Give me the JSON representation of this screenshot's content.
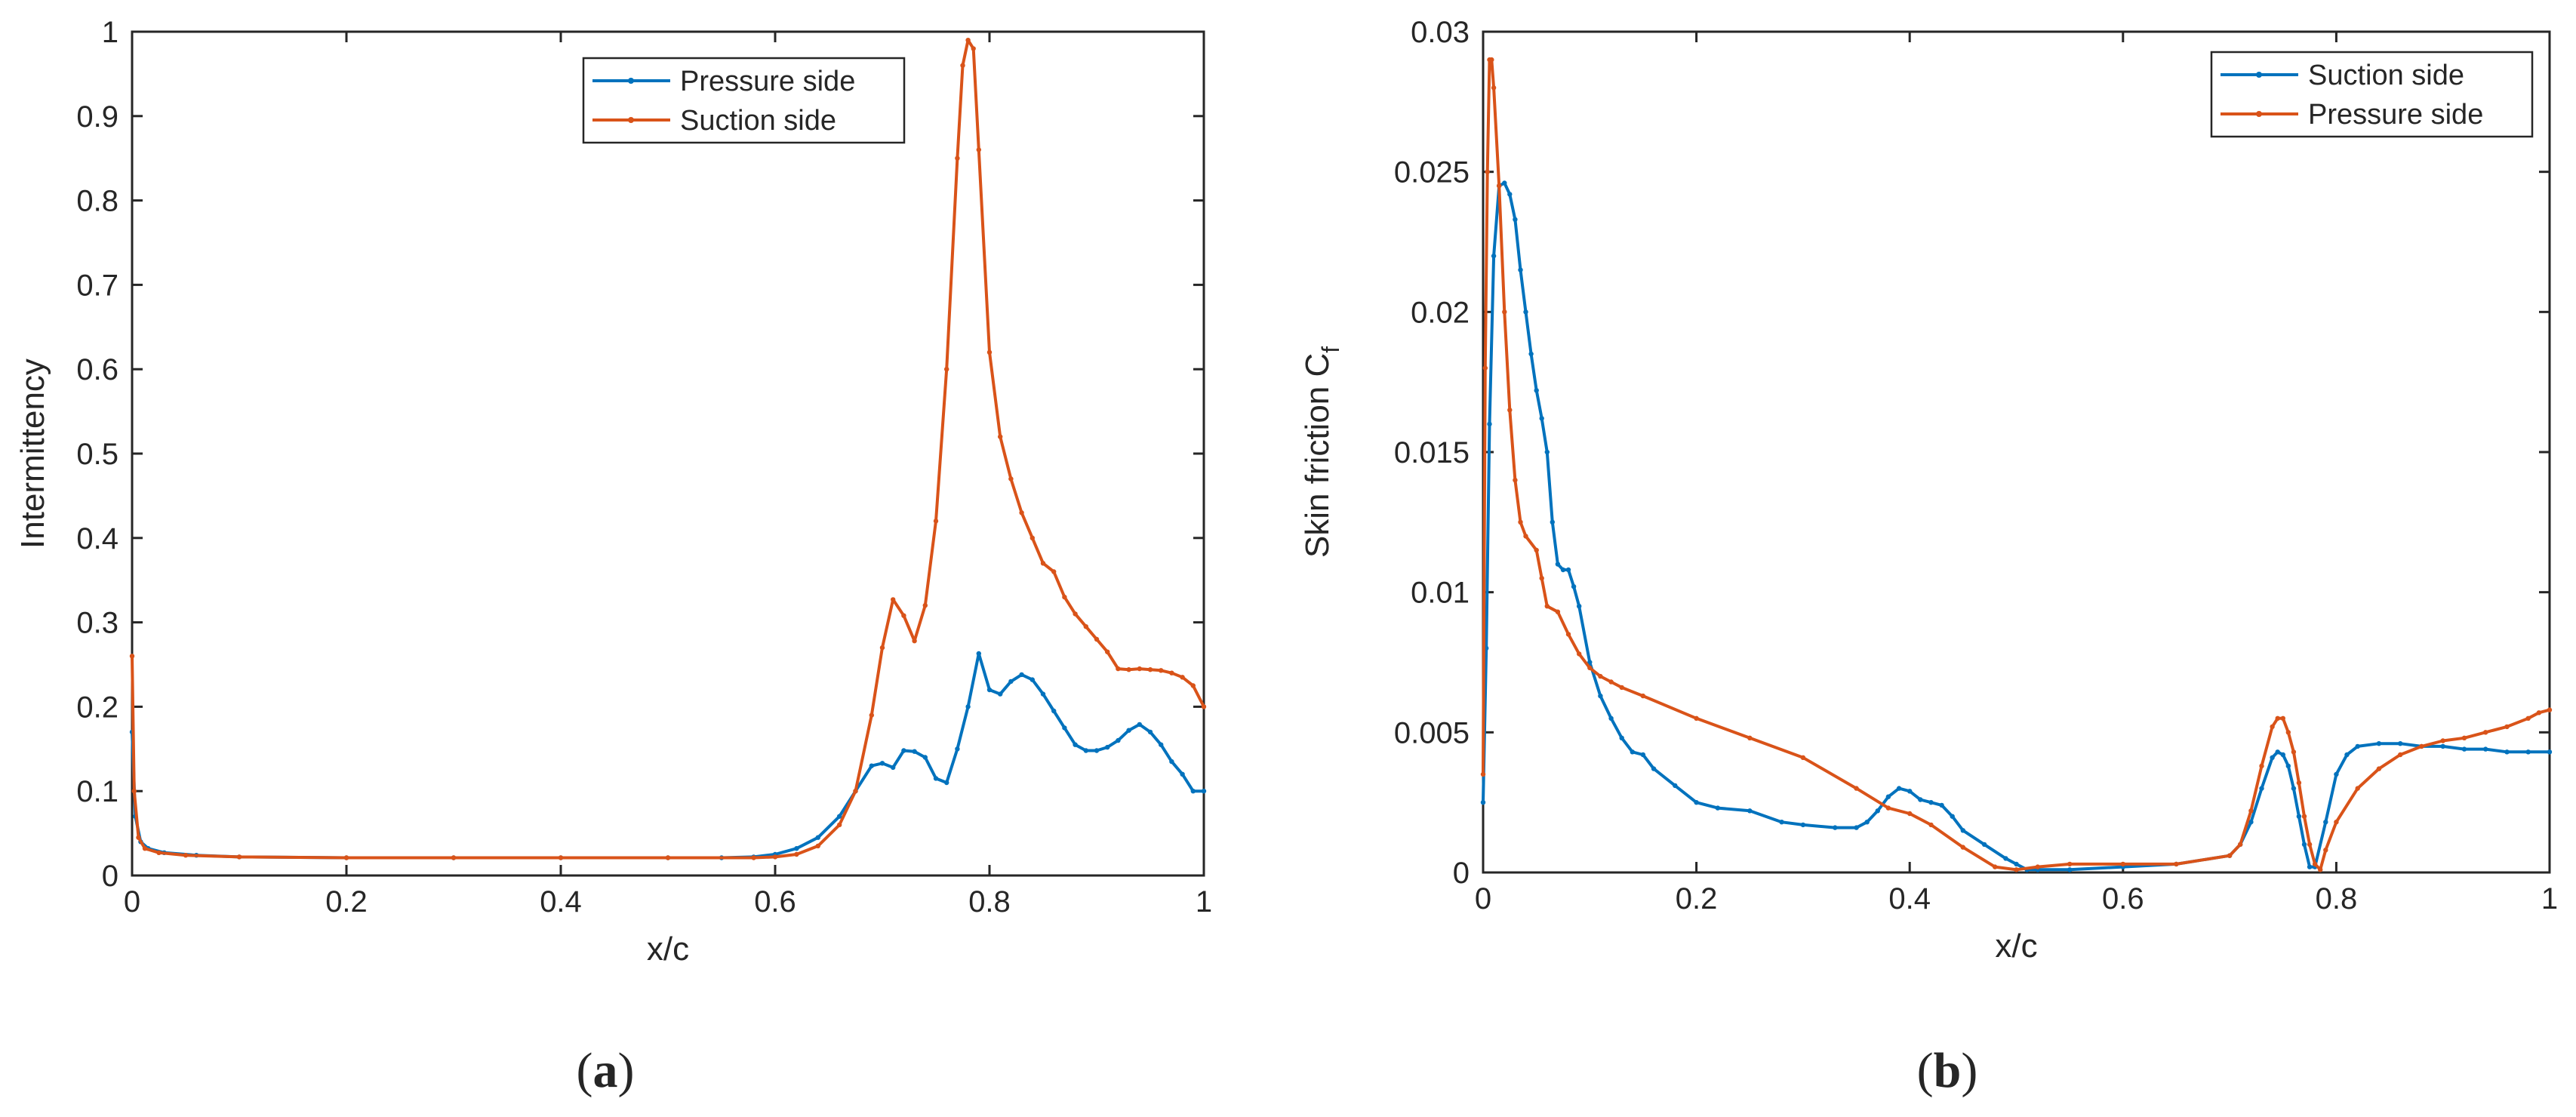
{
  "figure": {
    "panels": [
      {
        "label_open": "(",
        "label_letter": "a",
        "label_close": ")"
      },
      {
        "label_open": "(",
        "label_letter": "b",
        "label_close": ")"
      }
    ]
  },
  "chart_data": [
    {
      "type": "line",
      "xlabel": "x/c",
      "ylabel": "Intermittency",
      "xlim": [
        0,
        1
      ],
      "ylim": [
        0,
        1
      ],
      "xticks": [
        0,
        0.2,
        0.4,
        0.6,
        0.8,
        1
      ],
      "xtick_labels": [
        "0",
        "0.2",
        "0.4",
        "0.6",
        "0.8",
        "1"
      ],
      "yticks": [
        0,
        0.1,
        0.2,
        0.3,
        0.4,
        0.5,
        0.6,
        0.7,
        0.8,
        0.9,
        1
      ],
      "ytick_labels": [
        "0",
        "0.1",
        "0.2",
        "0.3",
        "0.4",
        "0.5",
        "0.6",
        "0.7",
        "0.8",
        "0.9",
        "1"
      ],
      "legend_position": "top-right",
      "series": [
        {
          "name": "Pressure side",
          "color": "#0072BD",
          "x": [
            0,
            0.003,
            0.008,
            0.015,
            0.03,
            0.06,
            0.1,
            0.2,
            0.3,
            0.4,
            0.5,
            0.55,
            0.58,
            0.6,
            0.62,
            0.64,
            0.66,
            0.675,
            0.69,
            0.7,
            0.71,
            0.72,
            0.73,
            0.74,
            0.75,
            0.76,
            0.77,
            0.78,
            0.79,
            0.8,
            0.81,
            0.82,
            0.83,
            0.84,
            0.85,
            0.86,
            0.87,
            0.88,
            0.89,
            0.9,
            0.91,
            0.92,
            0.93,
            0.94,
            0.95,
            0.96,
            0.97,
            0.98,
            0.99,
            1.0
          ],
          "y": [
            0.17,
            0.07,
            0.04,
            0.032,
            0.027,
            0.024,
            0.022,
            0.021,
            0.021,
            0.021,
            0.021,
            0.021,
            0.022,
            0.025,
            0.032,
            0.045,
            0.07,
            0.1,
            0.13,
            0.133,
            0.128,
            0.148,
            0.147,
            0.14,
            0.115,
            0.11,
            0.15,
            0.2,
            0.263,
            0.22,
            0.215,
            0.23,
            0.238,
            0.232,
            0.215,
            0.195,
            0.175,
            0.155,
            0.148,
            0.148,
            0.152,
            0.16,
            0.172,
            0.179,
            0.17,
            0.155,
            0.135,
            0.12,
            0.1,
            0.1
          ]
        },
        {
          "name": "Suction side",
          "color": "#D95319",
          "x": [
            0,
            0.002,
            0.006,
            0.012,
            0.025,
            0.05,
            0.1,
            0.2,
            0.3,
            0.4,
            0.5,
            0.58,
            0.6,
            0.62,
            0.64,
            0.66,
            0.675,
            0.69,
            0.7,
            0.71,
            0.72,
            0.73,
            0.74,
            0.75,
            0.76,
            0.77,
            0.775,
            0.78,
            0.785,
            0.79,
            0.8,
            0.81,
            0.82,
            0.83,
            0.84,
            0.85,
            0.86,
            0.87,
            0.88,
            0.89,
            0.9,
            0.91,
            0.92,
            0.93,
            0.94,
            0.95,
            0.96,
            0.97,
            0.98,
            0.99,
            1.0
          ],
          "y": [
            0.26,
            0.1,
            0.045,
            0.032,
            0.027,
            0.024,
            0.022,
            0.021,
            0.021,
            0.021,
            0.021,
            0.021,
            0.022,
            0.025,
            0.035,
            0.06,
            0.1,
            0.19,
            0.27,
            0.327,
            0.308,
            0.278,
            0.32,
            0.42,
            0.6,
            0.85,
            0.96,
            0.99,
            0.98,
            0.86,
            0.62,
            0.52,
            0.47,
            0.43,
            0.4,
            0.37,
            0.36,
            0.33,
            0.31,
            0.295,
            0.28,
            0.265,
            0.245,
            0.244,
            0.245,
            0.244,
            0.243,
            0.24,
            0.235,
            0.225,
            0.2
          ]
        }
      ]
    },
    {
      "type": "line",
      "xlabel": "x/c",
      "ylabel": "Skin friction C",
      "ylabel_subscript": "f",
      "xlim": [
        0,
        1
      ],
      "ylim": [
        0,
        0.03
      ],
      "xticks": [
        0,
        0.2,
        0.4,
        0.6,
        0.8,
        1
      ],
      "xtick_labels": [
        "0",
        "0.2",
        "0.4",
        "0.6",
        "0.8",
        "1"
      ],
      "yticks": [
        0,
        0.005,
        0.01,
        0.015,
        0.02,
        0.025,
        0.03
      ],
      "ytick_labels": [
        "0",
        "0.005",
        "0.01",
        "0.015",
        "0.02",
        "0.025",
        "0.03"
      ],
      "legend_position": "top-right",
      "series": [
        {
          "name": "Suction side",
          "color": "#0072BD",
          "x": [
            0,
            0.003,
            0.006,
            0.01,
            0.015,
            0.02,
            0.025,
            0.03,
            0.035,
            0.04,
            0.045,
            0.05,
            0.055,
            0.06,
            0.065,
            0.07,
            0.075,
            0.08,
            0.085,
            0.09,
            0.1,
            0.11,
            0.12,
            0.13,
            0.14,
            0.15,
            0.16,
            0.18,
            0.2,
            0.22,
            0.25,
            0.28,
            0.3,
            0.33,
            0.35,
            0.36,
            0.37,
            0.38,
            0.39,
            0.4,
            0.41,
            0.42,
            0.43,
            0.44,
            0.45,
            0.47,
            0.49,
            0.5,
            0.51,
            0.52,
            0.55,
            0.6,
            0.65,
            0.7,
            0.71,
            0.72,
            0.73,
            0.74,
            0.745,
            0.75,
            0.755,
            0.76,
            0.765,
            0.77,
            0.775,
            0.78,
            0.79,
            0.8,
            0.81,
            0.82,
            0.84,
            0.86,
            0.88,
            0.9,
            0.92,
            0.94,
            0.96,
            0.98,
            1.0
          ],
          "y": [
            0.0025,
            0.008,
            0.016,
            0.022,
            0.0245,
            0.0246,
            0.0242,
            0.0233,
            0.0215,
            0.02,
            0.0185,
            0.0172,
            0.0162,
            0.015,
            0.0125,
            0.011,
            0.0108,
            0.0108,
            0.0102,
            0.0095,
            0.0075,
            0.0063,
            0.0055,
            0.0048,
            0.0043,
            0.0042,
            0.0037,
            0.0031,
            0.0025,
            0.0023,
            0.0022,
            0.0018,
            0.0017,
            0.0016,
            0.0016,
            0.0018,
            0.0022,
            0.0027,
            0.003,
            0.0029,
            0.0026,
            0.0025,
            0.0024,
            0.002,
            0.0015,
            0.001,
            0.0005,
            0.0003,
            0.0001,
            0.0001,
            0.0001,
            0.0002,
            0.0003,
            0.0006,
            0.001,
            0.0018,
            0.003,
            0.0041,
            0.0043,
            0.0042,
            0.0038,
            0.003,
            0.002,
            0.001,
            0.0002,
            0.0002,
            0.0018,
            0.0035,
            0.0042,
            0.0045,
            0.0046,
            0.0046,
            0.0045,
            0.0045,
            0.0044,
            0.0044,
            0.0043,
            0.0043,
            0.0043
          ]
        },
        {
          "name": "Pressure side",
          "color": "#D95319",
          "x": [
            0,
            0.002,
            0.004,
            0.006,
            0.008,
            0.01,
            0.015,
            0.02,
            0.025,
            0.03,
            0.035,
            0.04,
            0.05,
            0.055,
            0.06,
            0.07,
            0.08,
            0.09,
            0.1,
            0.11,
            0.12,
            0.13,
            0.15,
            0.2,
            0.25,
            0.3,
            0.35,
            0.38,
            0.4,
            0.42,
            0.45,
            0.48,
            0.5,
            0.52,
            0.55,
            0.6,
            0.65,
            0.7,
            0.71,
            0.72,
            0.73,
            0.74,
            0.745,
            0.75,
            0.755,
            0.76,
            0.765,
            0.77,
            0.775,
            0.78,
            0.785,
            0.79,
            0.8,
            0.82,
            0.84,
            0.86,
            0.88,
            0.9,
            0.92,
            0.94,
            0.96,
            0.98,
            0.99,
            1.0
          ],
          "y": [
            0.0035,
            0.018,
            0.025,
            0.029,
            0.029,
            0.028,
            0.0245,
            0.02,
            0.0165,
            0.014,
            0.0125,
            0.012,
            0.0115,
            0.0105,
            0.0095,
            0.0093,
            0.0085,
            0.0078,
            0.0073,
            0.007,
            0.0068,
            0.0066,
            0.0063,
            0.0055,
            0.0048,
            0.0041,
            0.003,
            0.0023,
            0.0021,
            0.0017,
            0.0009,
            0.0002,
            0.0001,
            0.0002,
            0.0003,
            0.0003,
            0.0003,
            0.0006,
            0.001,
            0.0022,
            0.0038,
            0.0052,
            0.0055,
            0.0055,
            0.005,
            0.0043,
            0.0032,
            0.002,
            0.001,
            0.0003,
            0.0001,
            0.0008,
            0.0018,
            0.003,
            0.0037,
            0.0042,
            0.0045,
            0.0047,
            0.0048,
            0.005,
            0.0052,
            0.0055,
            0.0057,
            0.0058
          ]
        }
      ]
    }
  ]
}
